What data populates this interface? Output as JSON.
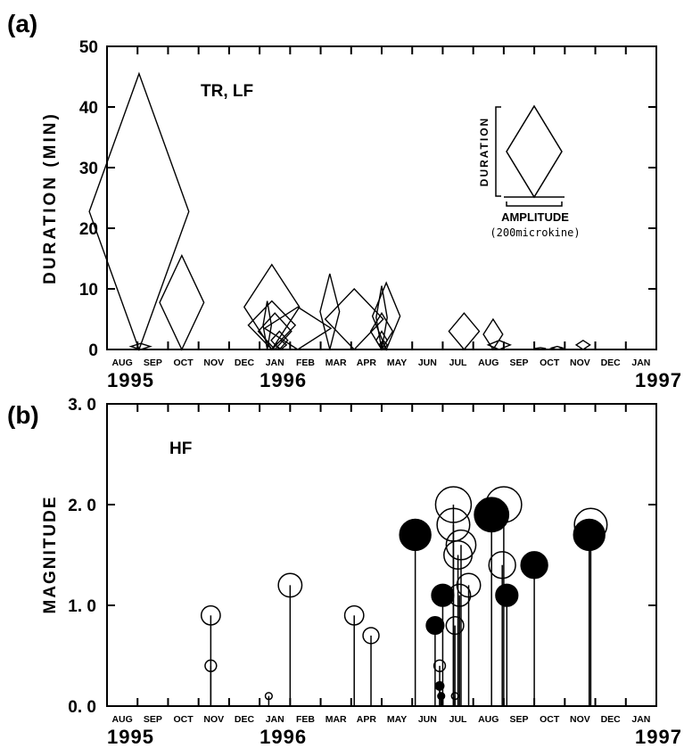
{
  "chart_data": [
    {
      "type": "scatter",
      "panel_label": "(a)",
      "series_label": "TR, LF",
      "ylabel": "DURATION (MIN)",
      "ylim": [
        0,
        50
      ],
      "yticks": [
        "0",
        "10",
        "20",
        "30",
        "40",
        "50"
      ],
      "month_labels": [
        "AUG",
        "SEP",
        "OCT",
        "NOV",
        "DEC",
        "JAN",
        "FEB",
        "MAR",
        "APR",
        "MAY",
        "JUN",
        "JUL",
        "AUG",
        "SEP",
        "OCT",
        "NOV",
        "DEC",
        "JAN"
      ],
      "year_labels": [
        "1995",
        "1996",
        "1997"
      ],
      "legend": {
        "ylabel": "DURATION",
        "xlabel": "AMPLITUDE",
        "unit": "(200microkine)"
      },
      "events": [
        {
          "month": 1.05,
          "duration": 45.5,
          "amplitude": 1.8
        },
        {
          "month": 1.1,
          "duration": 1.0,
          "amplitude": 0.35
        },
        {
          "month": 2.45,
          "duration": 15.5,
          "amplitude": 0.8
        },
        {
          "month": 5.4,
          "duration": 14.0,
          "amplitude": 1.0
        },
        {
          "month": 5.4,
          "duration": 8.0,
          "amplitude": 0.85
        },
        {
          "month": 5.25,
          "duration": 8.0,
          "amplitude": 0.15
        },
        {
          "month": 5.5,
          "duration": 6.0,
          "amplitude": 0.6
        },
        {
          "month": 5.65,
          "duration": 3.0,
          "amplitude": 0.3
        },
        {
          "month": 5.7,
          "duration": 1.5,
          "amplitude": 0.2
        },
        {
          "month": 6.25,
          "duration": 7.0,
          "amplitude": 1.2
        },
        {
          "month": 7.3,
          "duration": 12.5,
          "amplitude": 0.35
        },
        {
          "month": 8.1,
          "duration": 10.0,
          "amplitude": 1.05
        },
        {
          "month": 9.0,
          "duration": 10.5,
          "amplitude": 0.2
        },
        {
          "month": 9.0,
          "duration": 6.0,
          "amplitude": 0.4
        },
        {
          "month": 9.15,
          "duration": 11.0,
          "amplitude": 0.5
        },
        {
          "month": 9.0,
          "duration": 3.0,
          "amplitude": 0.2
        },
        {
          "month": 9.05,
          "duration": 1.5,
          "amplitude": 0.15
        },
        {
          "month": 11.7,
          "duration": 6.0,
          "amplitude": 0.55
        },
        {
          "month": 12.65,
          "duration": 5.0,
          "amplitude": 0.35
        },
        {
          "month": 12.85,
          "duration": 1.5,
          "amplitude": 0.4
        },
        {
          "month": 14.2,
          "duration": 0.3,
          "amplitude": 0.2
        },
        {
          "month": 14.75,
          "duration": 0.5,
          "amplitude": 0.2
        },
        {
          "month": 15.6,
          "duration": 1.5,
          "amplitude": 0.25
        }
      ]
    },
    {
      "type": "scatter",
      "panel_label": "(b)",
      "series_label": "HF",
      "ylabel": "MAGNITUDE",
      "ylim": [
        0,
        3
      ],
      "yticks": [
        "0. 0",
        "1. 0",
        "2. 0",
        "3. 0"
      ],
      "month_labels": [
        "AUG",
        "SEP",
        "OCT",
        "NOV",
        "DEC",
        "JAN",
        "FEB",
        "MAR",
        "APR",
        "MAY",
        "JUN",
        "JUL",
        "AUG",
        "SEP",
        "OCT",
        "NOV",
        "DEC",
        "JAN"
      ],
      "year_labels": [
        "1995",
        "1996",
        "1997"
      ],
      "events": [
        {
          "month": 3.4,
          "magnitude": 0.9,
          "filled": false
        },
        {
          "month": 3.4,
          "magnitude": 0.4,
          "filled": false
        },
        {
          "month": 5.3,
          "magnitude": 0.1,
          "filled": false
        },
        {
          "month": 6.0,
          "magnitude": 1.2,
          "filled": false
        },
        {
          "month": 8.1,
          "magnitude": 0.9,
          "filled": false
        },
        {
          "month": 8.65,
          "magnitude": 0.7,
          "filled": false
        },
        {
          "month": 10.1,
          "magnitude": 1.7,
          "filled": true
        },
        {
          "month": 10.75,
          "magnitude": 0.8,
          "filled": true
        },
        {
          "month": 10.9,
          "magnitude": 0.4,
          "filled": false
        },
        {
          "month": 10.9,
          "magnitude": 0.2,
          "filled": true
        },
        {
          "month": 10.95,
          "magnitude": 0.1,
          "filled": true
        },
        {
          "month": 11.0,
          "magnitude": 1.1,
          "filled": true
        },
        {
          "month": 11.35,
          "magnitude": 2.0,
          "filled": false
        },
        {
          "month": 11.35,
          "magnitude": 1.8,
          "filled": false
        },
        {
          "month": 11.4,
          "magnitude": 0.8,
          "filled": false
        },
        {
          "month": 11.4,
          "magnitude": 0.1,
          "filled": false
        },
        {
          "month": 11.5,
          "magnitude": 1.5,
          "filled": false
        },
        {
          "month": 11.6,
          "magnitude": 1.6,
          "filled": false
        },
        {
          "month": 11.55,
          "magnitude": 1.1,
          "filled": false
        },
        {
          "month": 11.85,
          "magnitude": 1.2,
          "filled": false
        },
        {
          "month": 12.6,
          "magnitude": 1.9,
          "filled": true
        },
        {
          "month": 13.0,
          "magnitude": 2.0,
          "filled": false
        },
        {
          "month": 12.95,
          "magnitude": 1.4,
          "filled": false
        },
        {
          "month": 13.1,
          "magnitude": 1.1,
          "filled": true
        },
        {
          "month": 14.0,
          "magnitude": 1.4,
          "filled": true
        },
        {
          "month": 15.85,
          "magnitude": 1.8,
          "filled": false
        },
        {
          "month": 15.8,
          "magnitude": 1.7,
          "filled": true
        }
      ]
    }
  ]
}
